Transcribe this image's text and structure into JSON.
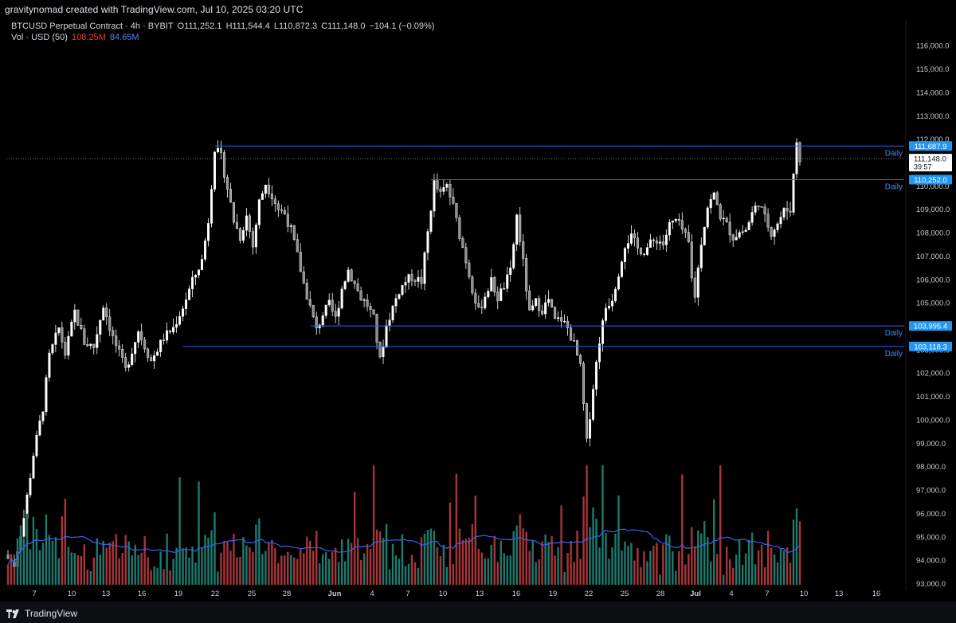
{
  "header": {
    "credit": "gravitynomad created with TradingView.com, Jul 10, 2025 03:20 UTC"
  },
  "legend": {
    "symbol": "BTCUSD Perpetual Contract · 4h · BYBIT",
    "open": "O111,252.1",
    "high": "H111,544.4",
    "low": "L110,872.3",
    "close": "C111,148.0",
    "change": "−104.1 (−0.09%)",
    "vol_label": "Vol · USD (50)",
    "vol_value": "108.25M",
    "vol_ma": "84.65M"
  },
  "footer": {
    "brand": "TradingView"
  },
  "colors": {
    "background": "#000000",
    "candle": "#ffffff",
    "level_line": "#2962ff",
    "level_label_bg": "#2196f3",
    "vol_up": "#1e7a6e",
    "vol_down": "#a8353a",
    "vol_ma": "#3f5ff0"
  },
  "chart_data": {
    "type": "candlestick",
    "title": "BTCUSD Perpetual Contract · 4h · BYBIT",
    "ylim": [
      93000,
      116500
    ],
    "y_ticks": [
      "116,000.0",
      "115,000.0",
      "114,000.0",
      "113,000.0",
      "112,000.0",
      "111,000.0",
      "110,000.0",
      "109,000.0",
      "108,000.0",
      "107,000.0",
      "106,000.0",
      "105,000.0",
      "104,000.0",
      "103,000.0",
      "102,000.0",
      "101,000.0",
      "100,000.0",
      "99,000.0",
      "98,000.0",
      "97,000.0",
      "96,000.0",
      "95,000.0",
      "94,000.0",
      "93,000.0"
    ],
    "x_ticks": [
      "7",
      "10",
      "13",
      "16",
      "19",
      "22",
      "25",
      "28",
      "Jun",
      "4",
      "7",
      "10",
      "13",
      "16",
      "19",
      "22",
      "25",
      "28",
      "Jul",
      "4",
      "7",
      "10",
      "13",
      "16"
    ],
    "last_price": {
      "value": "111,148.0",
      "countdown": "39:57"
    },
    "levels": [
      {
        "value": 111687.9,
        "label": "111,687.9",
        "tag": "Daily"
      },
      {
        "value": 110252.0,
        "label": "110,252.0",
        "tag": "Daily"
      },
      {
        "value": 103995.4,
        "label": "103,995.4",
        "tag": "Daily"
      },
      {
        "value": 103118.3,
        "label": "103,118.3",
        "tag": "Daily"
      }
    ],
    "price_path": [
      [
        0,
        94200
      ],
      [
        3,
        93800
      ],
      [
        6,
        95800
      ],
      [
        9,
        98500
      ],
      [
        12,
        100500
      ],
      [
        14,
        102700
      ],
      [
        17,
        103900
      ],
      [
        19,
        102800
      ],
      [
        22,
        104600
      ],
      [
        25,
        103300
      ],
      [
        28,
        103100
      ],
      [
        31,
        104900
      ],
      [
        34,
        103500
      ],
      [
        38,
        102100
      ],
      [
        42,
        103800
      ],
      [
        46,
        102500
      ],
      [
        50,
        103500
      ],
      [
        53,
        103900
      ],
      [
        56,
        104800
      ],
      [
        59,
        105900
      ],
      [
        62,
        106800
      ],
      [
        64,
        108500
      ],
      [
        66,
        111600
      ],
      [
        68,
        111200
      ],
      [
        70,
        109900
      ],
      [
        72,
        108500
      ],
      [
        74,
        107800
      ],
      [
        76,
        108700
      ],
      [
        78,
        107400
      ],
      [
        80,
        109300
      ],
      [
        82,
        110100
      ],
      [
        84,
        109600
      ],
      [
        86,
        109000
      ],
      [
        88,
        108800
      ],
      [
        90,
        108100
      ],
      [
        92,
        107000
      ],
      [
        94,
        105800
      ],
      [
        96,
        104800
      ],
      [
        98,
        103800
      ],
      [
        100,
        104500
      ],
      [
        102,
        104900
      ],
      [
        104,
        104300
      ],
      [
        106,
        105600
      ],
      [
        108,
        106400
      ],
      [
        110,
        105800
      ],
      [
        112,
        105200
      ],
      [
        114,
        104900
      ],
      [
        116,
        104300
      ],
      [
        118,
        102500
      ],
      [
        120,
        104000
      ],
      [
        122,
        104800
      ],
      [
        124,
        105500
      ],
      [
        126,
        105900
      ],
      [
        128,
        106100
      ],
      [
        131,
        105900
      ],
      [
        133,
        108000
      ],
      [
        135,
        110100
      ],
      [
        137,
        109600
      ],
      [
        139,
        110000
      ],
      [
        141,
        109100
      ],
      [
        143,
        107900
      ],
      [
        145,
        106800
      ],
      [
        147,
        105600
      ],
      [
        149,
        104600
      ],
      [
        151,
        105300
      ],
      [
        153,
        105900
      ],
      [
        155,
        105200
      ],
      [
        157,
        105700
      ],
      [
        159,
        106300
      ],
      [
        161,
        108700
      ],
      [
        163,
        106700
      ],
      [
        165,
        104500
      ],
      [
        167,
        105000
      ],
      [
        169,
        104700
      ],
      [
        171,
        105100
      ],
      [
        173,
        104200
      ],
      [
        175,
        104300
      ],
      [
        177,
        103900
      ],
      [
        179,
        103200
      ],
      [
        181,
        102200
      ],
      [
        183,
        99000
      ],
      [
        185,
        101400
      ],
      [
        187,
        103400
      ],
      [
        189,
        104800
      ],
      [
        191,
        105200
      ],
      [
        193,
        106300
      ],
      [
        195,
        107500
      ],
      [
        197,
        107800
      ],
      [
        199,
        107300
      ],
      [
        201,
        107200
      ],
      [
        203,
        107500
      ],
      [
        205,
        107700
      ],
      [
        207,
        107500
      ],
      [
        209,
        108300
      ],
      [
        211,
        108500
      ],
      [
        213,
        108100
      ],
      [
        215,
        107500
      ],
      [
        216,
        106000
      ],
      [
        217,
        105300
      ],
      [
        219,
        107600
      ],
      [
        221,
        109100
      ],
      [
        223,
        109600
      ],
      [
        225,
        108700
      ],
      [
        227,
        108300
      ],
      [
        229,
        107800
      ],
      [
        231,
        108000
      ],
      [
        233,
        108100
      ],
      [
        235,
        108800
      ],
      [
        237,
        109300
      ],
      [
        239,
        108600
      ],
      [
        241,
        108000
      ],
      [
        243,
        108400
      ],
      [
        245,
        108900
      ],
      [
        247,
        109000
      ],
      [
        249,
        111900
      ],
      [
        250,
        111148
      ]
    ],
    "volume_ma_level": 0.28
  }
}
